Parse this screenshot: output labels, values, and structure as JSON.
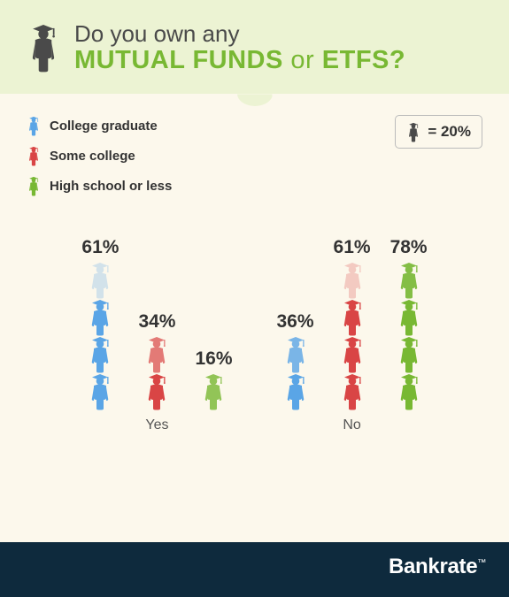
{
  "title": {
    "line1": "Do you own any",
    "strong1": "MUTUAL FUNDS",
    "connector": "or",
    "strong2": "ETFS?"
  },
  "legend": {
    "items": [
      {
        "label": "College graduate",
        "color": "#5aa5e6"
      },
      {
        "label": "Some college",
        "color": "#d94545"
      },
      {
        "label": "High school or less",
        "color": "#78b833"
      }
    ]
  },
  "scale": {
    "equals": "= 20%",
    "icon_color": "#4a4a4a",
    "unit": 20
  },
  "chart": {
    "groups": [
      {
        "label": "Yes",
        "bars": [
          {
            "pct": "61%",
            "value": 61,
            "color": "#5aa5e6"
          },
          {
            "pct": "34%",
            "value": 34,
            "color": "#d94545"
          },
          {
            "pct": "16%",
            "value": 16,
            "color": "#78b833"
          }
        ]
      },
      {
        "label": "No",
        "bars": [
          {
            "pct": "36%",
            "value": 36,
            "color": "#5aa5e6"
          },
          {
            "pct": "61%",
            "value": 61,
            "color": "#d94545"
          },
          {
            "pct": "78%",
            "value": 78,
            "color": "#78b833"
          }
        ]
      }
    ]
  },
  "footer": {
    "brand": "Bankrate",
    "tm": "™"
  },
  "colors": {
    "bg": "#fcf8ec",
    "header_bg": "#ecf3d3",
    "title_gray": "#4a4a4a",
    "title_green": "#78b833",
    "footer": "#0e2a3d"
  }
}
